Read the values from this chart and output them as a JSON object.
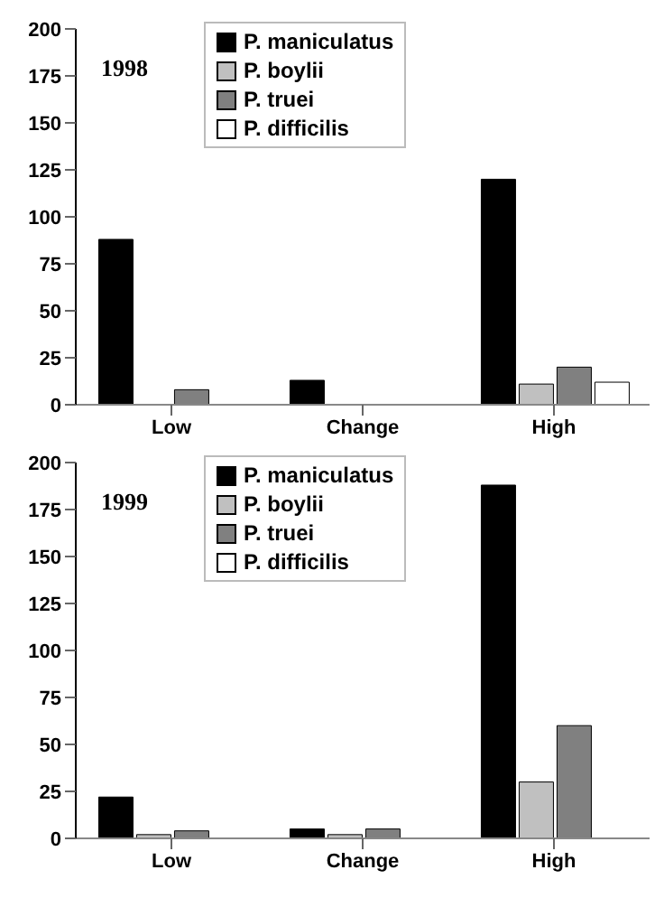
{
  "chart_data": [
    {
      "type": "bar",
      "categories": [
        "Low",
        "Change",
        "High"
      ],
      "ylim": [
        0,
        200
      ],
      "yticks": [
        0,
        25,
        50,
        75,
        100,
        125,
        150,
        175,
        200
      ],
      "grid": false,
      "legend": "top",
      "annotations": [
        "1998"
      ],
      "series": [
        {
          "name": "P. maniculatus",
          "color": "#000000",
          "values": [
            88,
            13,
            120
          ]
        },
        {
          "name": "P. boylii",
          "color": "#c0c0c0",
          "values": [
            0,
            0,
            11
          ]
        },
        {
          "name": "P. truei",
          "color": "#808080",
          "values": [
            8,
            0,
            20
          ]
        },
        {
          "name": "P. difficilis",
          "color": "#ffffff",
          "values": [
            0,
            0,
            12
          ]
        }
      ]
    },
    {
      "type": "bar",
      "categories": [
        "Low",
        "Change",
        "High"
      ],
      "ylim": [
        0,
        200
      ],
      "yticks": [
        0,
        25,
        50,
        75,
        100,
        125,
        150,
        175,
        200
      ],
      "grid": false,
      "legend": "top",
      "annotations": [
        "1999"
      ],
      "series": [
        {
          "name": "P. maniculatus",
          "color": "#000000",
          "values": [
            22,
            5,
            188
          ]
        },
        {
          "name": "P. boylii",
          "color": "#c0c0c0",
          "values": [
            2,
            2,
            30
          ]
        },
        {
          "name": "P. truei",
          "color": "#808080",
          "values": [
            4,
            5,
            60
          ]
        },
        {
          "name": "P. difficilis",
          "color": "#ffffff",
          "values": [
            0,
            0,
            0
          ]
        }
      ]
    }
  ]
}
